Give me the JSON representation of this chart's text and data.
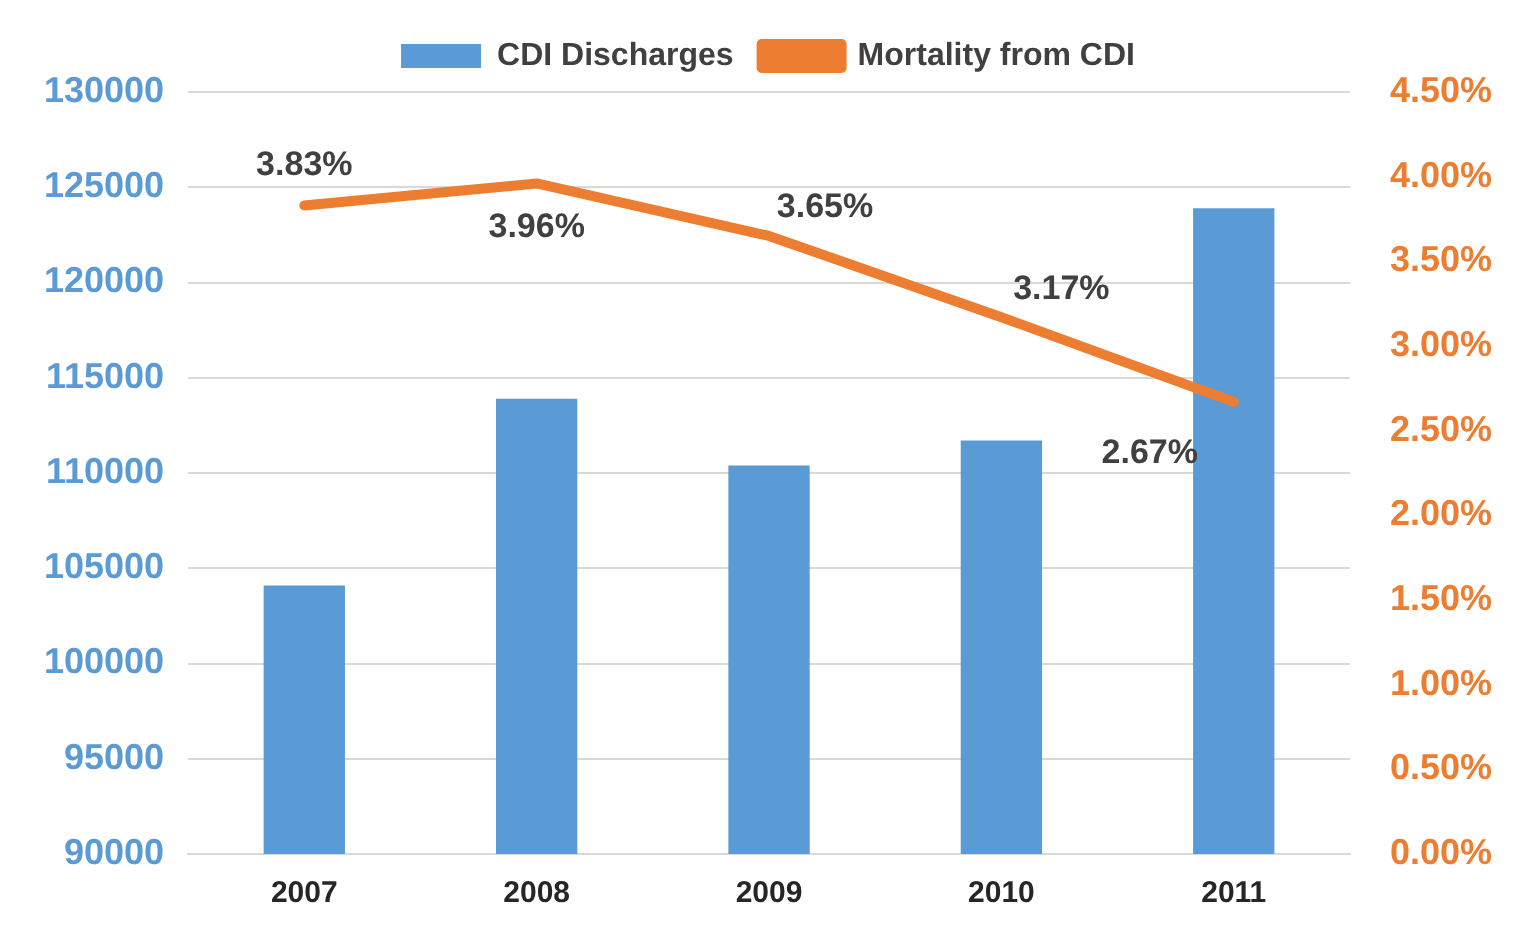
{
  "chart_data": {
    "type": "bar",
    "categories": [
      "2007",
      "2008",
      "2009",
      "2010",
      "2011"
    ],
    "series": [
      {
        "name": "CDI Discharges",
        "color": "#5b9bd5",
        "values": [
          104100,
          113900,
          110400,
          111700,
          123900
        ]
      },
      {
        "name": "Mortality from CDI",
        "type": "line",
        "axis": "y2",
        "color": "#ed7d31",
        "values": [
          3.83,
          3.96,
          3.65,
          3.17,
          2.67
        ],
        "value_labels": [
          "3.83%",
          "3.96%",
          "3.65%",
          "3.17%",
          "2.67%"
        ],
        "marker": "none"
      }
    ],
    "ylim": [
      90000,
      130000
    ],
    "yticks": [
      90000,
      95000,
      100000,
      105000,
      110000,
      115000,
      120000,
      125000,
      130000
    ],
    "y2lim": [
      0,
      4.5
    ],
    "y2ticks": [
      {
        "value": 0,
        "label": "0.00%"
      },
      {
        "value": 0.5,
        "label": "0.50%"
      },
      {
        "value": 1,
        "label": "1.00%"
      },
      {
        "value": 1.5,
        "label": "1.50%"
      },
      {
        "value": 2,
        "label": "2.00%"
      },
      {
        "value": 2.5,
        "label": "2.50%"
      },
      {
        "value": 3,
        "label": "3.00%"
      },
      {
        "value": 3.5,
        "label": "3.50%"
      },
      {
        "value": 4,
        "label": "4.00%"
      },
      {
        "value": 4.5,
        "label": "4.50%"
      }
    ],
    "grid": "y",
    "legend": "top"
  }
}
